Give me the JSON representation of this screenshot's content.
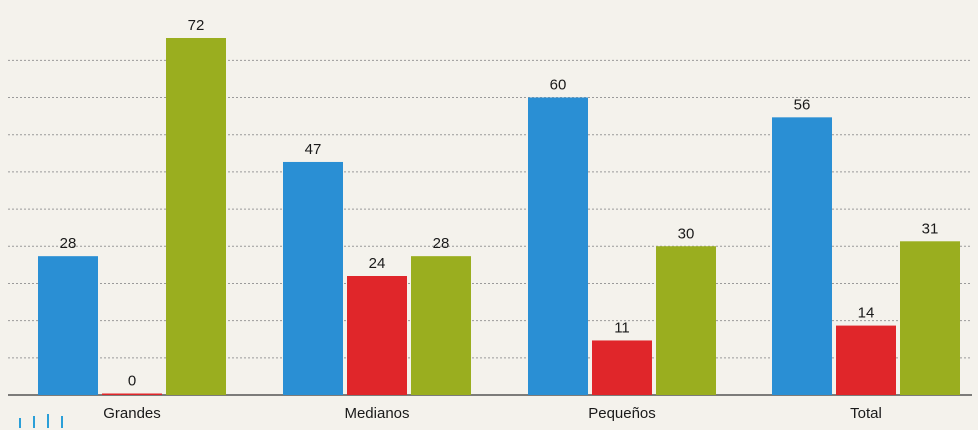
{
  "chart_data": {
    "type": "bar",
    "categories": [
      "Grandes",
      "Medianos",
      "Pequeños",
      "Total"
    ],
    "series": [
      {
        "values": [
          28,
          47,
          60,
          56
        ],
        "color": "#2a8fd4"
      },
      {
        "values": [
          0,
          24,
          11,
          14
        ],
        "color": "#e0262a"
      },
      {
        "values": [
          72,
          28,
          30,
          31
        ],
        "color": "#9aae1f"
      }
    ],
    "ylim": [
      0,
      75
    ],
    "grid": true,
    "legend": "none"
  }
}
